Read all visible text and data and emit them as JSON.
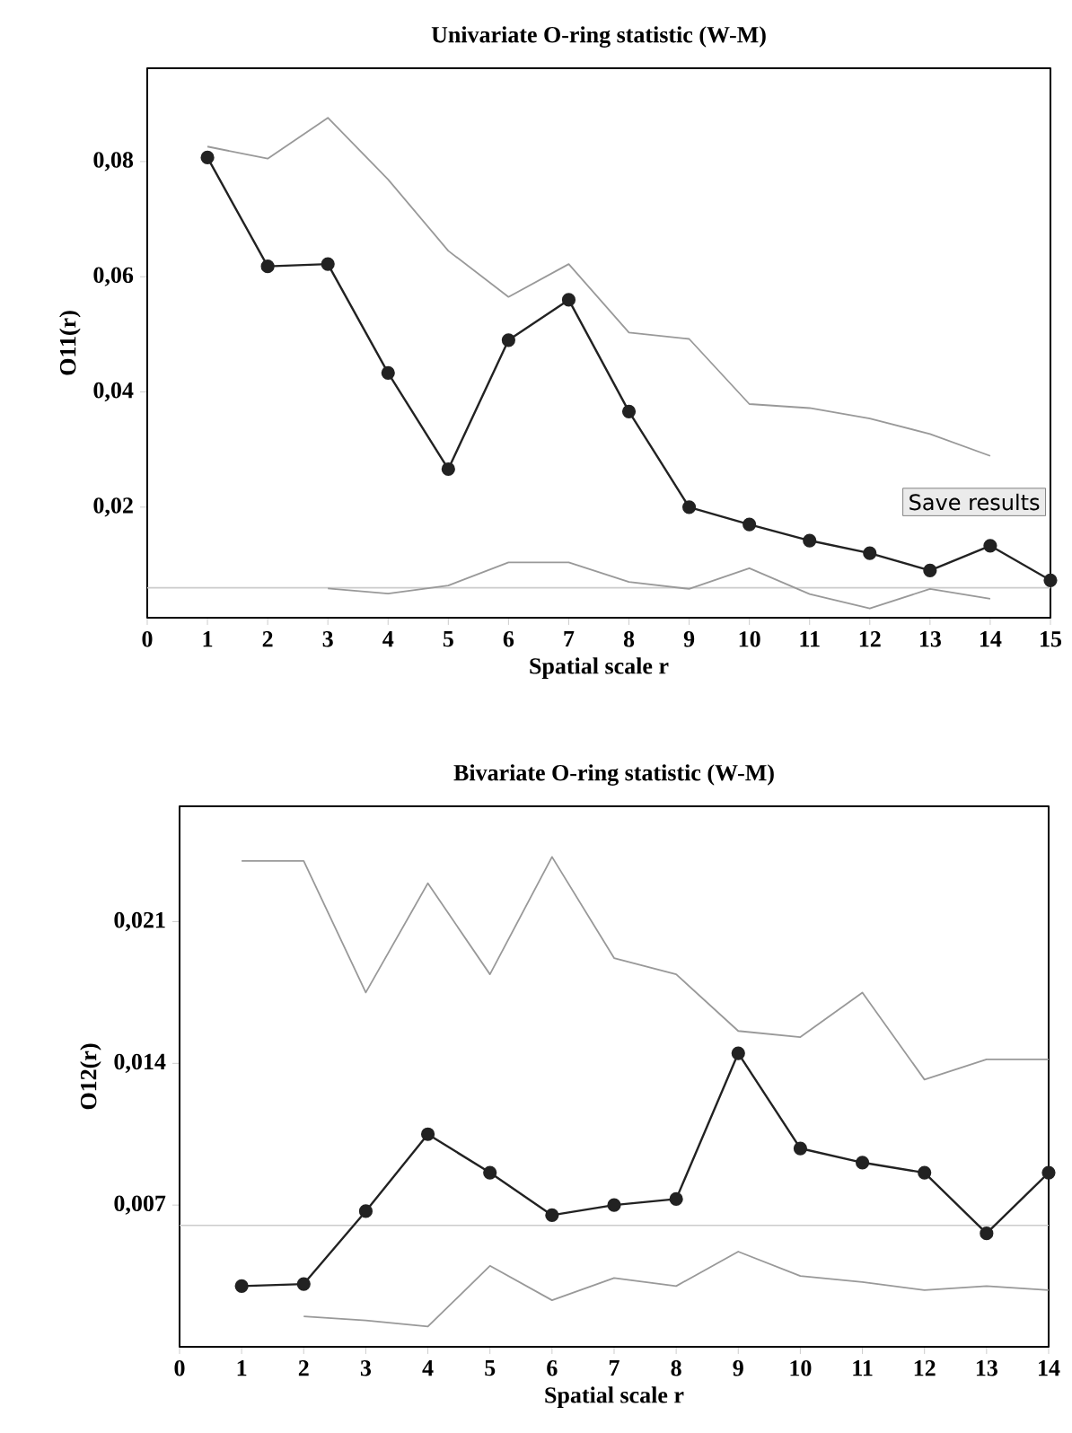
{
  "chart_data": [
    {
      "type": "line",
      "title": "Univariate O-ring statistic (W-M)",
      "xlabel": "Spatial scale r",
      "ylabel": "O11(r)",
      "x": [
        1,
        2,
        3,
        4,
        5,
        6,
        7,
        8,
        9,
        10,
        11,
        12,
        13,
        14,
        15
      ],
      "xlim": [
        0,
        15
      ],
      "xticks": [
        0,
        1,
        2,
        3,
        4,
        5,
        6,
        7,
        8,
        9,
        10,
        11,
        12,
        13,
        14,
        15
      ],
      "ylim": [
        0.0008,
        0.0962
      ],
      "yticks": [
        {
          "value": 0.02,
          "label": "0,02"
        },
        {
          "value": 0.04,
          "label": "0,04"
        },
        {
          "value": 0.06,
          "label": "0,06"
        },
        {
          "value": 0.08,
          "label": "0,08"
        }
      ],
      "line_style": "solid",
      "series": [
        {
          "color": "#999999",
          "marker": "none",
          "values": [
            0.0826,
            0.0805,
            0.0876,
            0.0769,
            0.0645,
            0.0565,
            0.0622,
            0.0503,
            0.0492,
            0.0379,
            0.0372,
            0.0354,
            0.0327,
            0.0289,
            null
          ]
        },
        {
          "color": "#999999",
          "marker": "none",
          "values": [
            null,
            null,
            0.0059,
            0.005,
            0.0064,
            0.0104,
            0.0104,
            0.007,
            0.0058,
            0.0094,
            0.0049,
            0.0024,
            0.0058,
            0.0041,
            null
          ]
        },
        {
          "color": "#222222",
          "marker": "circle",
          "values": [
            0.0807,
            0.0618,
            0.0622,
            0.0433,
            0.0266,
            0.049,
            0.056,
            0.0366,
            0.02,
            0.017,
            0.0142,
            0.012,
            0.009,
            0.0133,
            0.0073
          ]
        }
      ],
      "ref_lines": [
        {
          "axis": "y",
          "value": 0.006,
          "color": "#cccccc"
        }
      ],
      "annotations": [
        "Save results"
      ]
    },
    {
      "type": "line",
      "title": "Bivariate O-ring statistic (W-M)",
      "xlabel": "Spatial scale r",
      "ylabel": "O12(r)",
      "x": [
        1,
        2,
        3,
        4,
        5,
        6,
        7,
        8,
        9,
        10,
        11,
        12,
        13,
        14
      ],
      "xlim": [
        0,
        14
      ],
      "xticks": [
        0,
        1,
        2,
        3,
        4,
        5,
        6,
        7,
        8,
        9,
        10,
        11,
        12,
        13,
        14
      ],
      "ylim": [
        0,
        0.0267
      ],
      "yticks": [
        {
          "value": 0.007,
          "label": "0,007"
        },
        {
          "value": 0.014,
          "label": "0,014"
        },
        {
          "value": 0.021,
          "label": "0,021"
        }
      ],
      "line_style": "solid",
      "series": [
        {
          "color": "#999999",
          "marker": "none",
          "values": [
            0.024,
            0.024,
            0.0175,
            0.0229,
            0.0184,
            0.0242,
            0.0192,
            0.0184,
            0.0156,
            0.0153,
            0.0175,
            0.0132,
            0.0142,
            0.0142
          ]
        },
        {
          "color": "#999999",
          "marker": "none",
          "values": [
            null,
            0.0015,
            0.0013,
            0.001,
            0.004,
            0.0023,
            0.0034,
            0.003,
            0.0047,
            0.0035,
            0.0032,
            0.0028,
            0.003,
            0.0028
          ]
        },
        {
          "color": "#222222",
          "marker": "circle",
          "values": [
            0.003,
            0.0031,
            0.0067,
            0.0105,
            0.0086,
            0.0065,
            0.007,
            0.0073,
            0.0145,
            0.0098,
            0.0091,
            0.0086,
            0.0056,
            0.0086
          ]
        }
      ],
      "ref_lines": [
        {
          "axis": "y",
          "value": 0.006,
          "color": "#cccccc"
        }
      ]
    }
  ]
}
